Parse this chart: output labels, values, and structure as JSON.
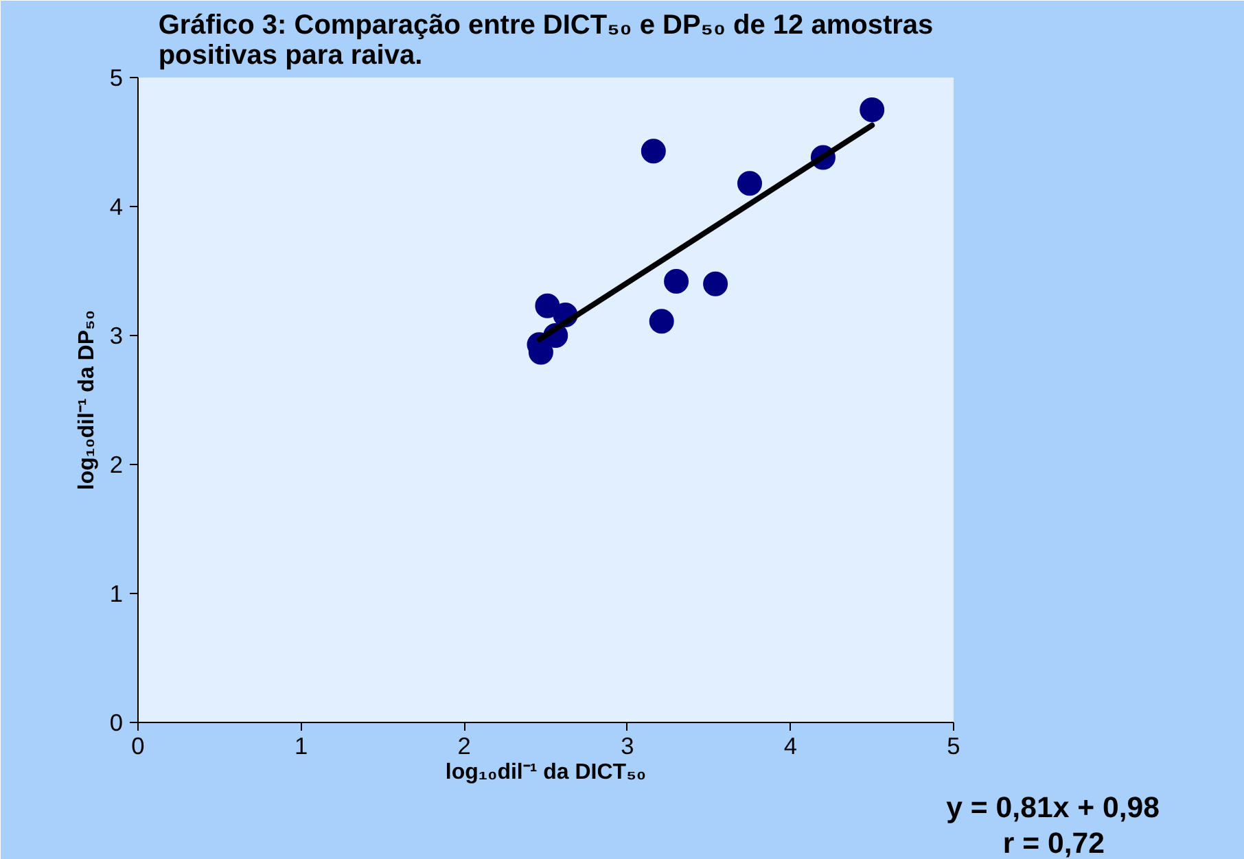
{
  "chart_data": {
    "type": "scatter",
    "title": "Gráfico 3: Comparação entre DICT₅₀ e DP₅₀ de 12 amostras positivas para raiva.",
    "xlabel": "log₁₀dil⁻¹ da DICT₅₀",
    "ylabel": "log₁₀dil⁻¹ da DP₅₀",
    "series": [
      {
        "type": "scatter",
        "color": "#000080",
        "marker": "circle",
        "x": [
          3.16,
          4.5,
          4.2,
          3.75,
          3.3,
          3.54,
          3.21,
          2.51,
          2.62,
          2.56,
          2.46,
          2.47
        ],
        "values": [
          4.43,
          4.75,
          4.38,
          4.18,
          3.42,
          3.4,
          3.11,
          3.23,
          3.16,
          3.0,
          2.93,
          2.87
        ]
      },
      {
        "type": "line",
        "color": "#000000",
        "x": [
          2.46,
          4.5
        ],
        "values": [
          2.97,
          4.63
        ]
      }
    ],
    "xlim": [
      0,
      5
    ],
    "ylim": [
      0,
      5
    ],
    "xticks": [
      0,
      1,
      2,
      3,
      4,
      5
    ],
    "yticks": [
      0,
      1,
      2,
      3,
      4,
      5
    ],
    "grid": false,
    "annotations": [
      "y = 0,81x + 0,98",
      "r = 0,72"
    ]
  }
}
